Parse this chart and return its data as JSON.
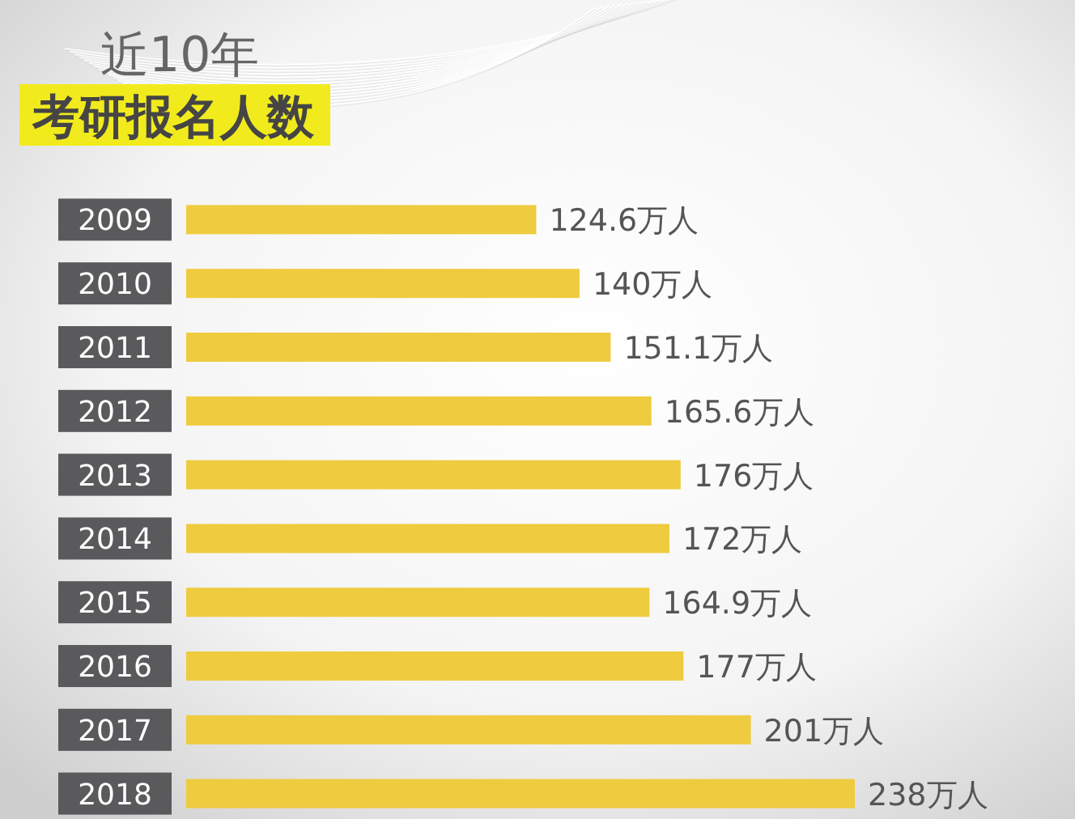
{
  "chart_data": {
    "type": "bar",
    "orientation": "horizontal",
    "title": "近10年",
    "subtitle": "考研报名人数",
    "categories": [
      "2009",
      "2010",
      "2011",
      "2012",
      "2013",
      "2014",
      "2015",
      "2016",
      "2017",
      "2018"
    ],
    "values": [
      124.6,
      140,
      151.1,
      165.6,
      176,
      172,
      164.9,
      177,
      201,
      238
    ],
    "color": "#efcb3f",
    "value_labels": [
      "124.6万人",
      "140万人",
      "151.1万人",
      "165.6万人",
      "176万人",
      "172万人",
      "164.9万人",
      "177万人",
      "201万人",
      "238万人"
    ]
  }
}
